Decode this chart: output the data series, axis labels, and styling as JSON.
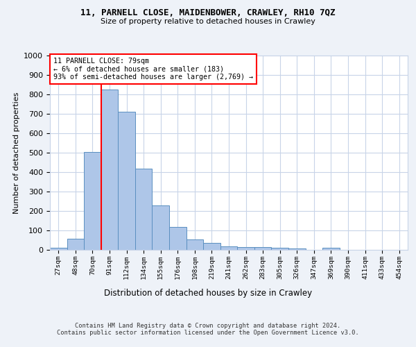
{
  "title1": "11, PARNELL CLOSE, MAIDENBOWER, CRAWLEY, RH10 7QZ",
  "title2": "Size of property relative to detached houses in Crawley",
  "xlabel": "Distribution of detached houses by size in Crawley",
  "ylabel": "Number of detached properties",
  "bin_labels": [
    "27sqm",
    "48sqm",
    "70sqm",
    "91sqm",
    "112sqm",
    "134sqm",
    "155sqm",
    "176sqm",
    "198sqm",
    "219sqm",
    "241sqm",
    "262sqm",
    "283sqm",
    "305sqm",
    "326sqm",
    "347sqm",
    "369sqm",
    "390sqm",
    "411sqm",
    "433sqm",
    "454sqm"
  ],
  "bar_heights": [
    10,
    57,
    505,
    825,
    712,
    418,
    230,
    117,
    55,
    35,
    18,
    15,
    15,
    10,
    8,
    0,
    10,
    0,
    0,
    0,
    0
  ],
  "bar_color": "#aec6e8",
  "bar_edge_color": "#5a8fc0",
  "vline_x_index": 2,
  "annotation_text": "11 PARNELL CLOSE: 79sqm\n← 6% of detached houses are smaller (183)\n93% of semi-detached houses are larger (2,769) →",
  "annotation_box_color": "white",
  "annotation_box_edge_color": "red",
  "vline_color": "red",
  "ylim": [
    0,
    1000
  ],
  "yticks": [
    0,
    100,
    200,
    300,
    400,
    500,
    600,
    700,
    800,
    900,
    1000
  ],
  "footer_line1": "Contains HM Land Registry data © Crown copyright and database right 2024.",
  "footer_line2": "Contains public sector information licensed under the Open Government Licence v3.0.",
  "background_color": "#eef2f8",
  "plot_background_color": "white",
  "grid_color": "#c8d4e8"
}
